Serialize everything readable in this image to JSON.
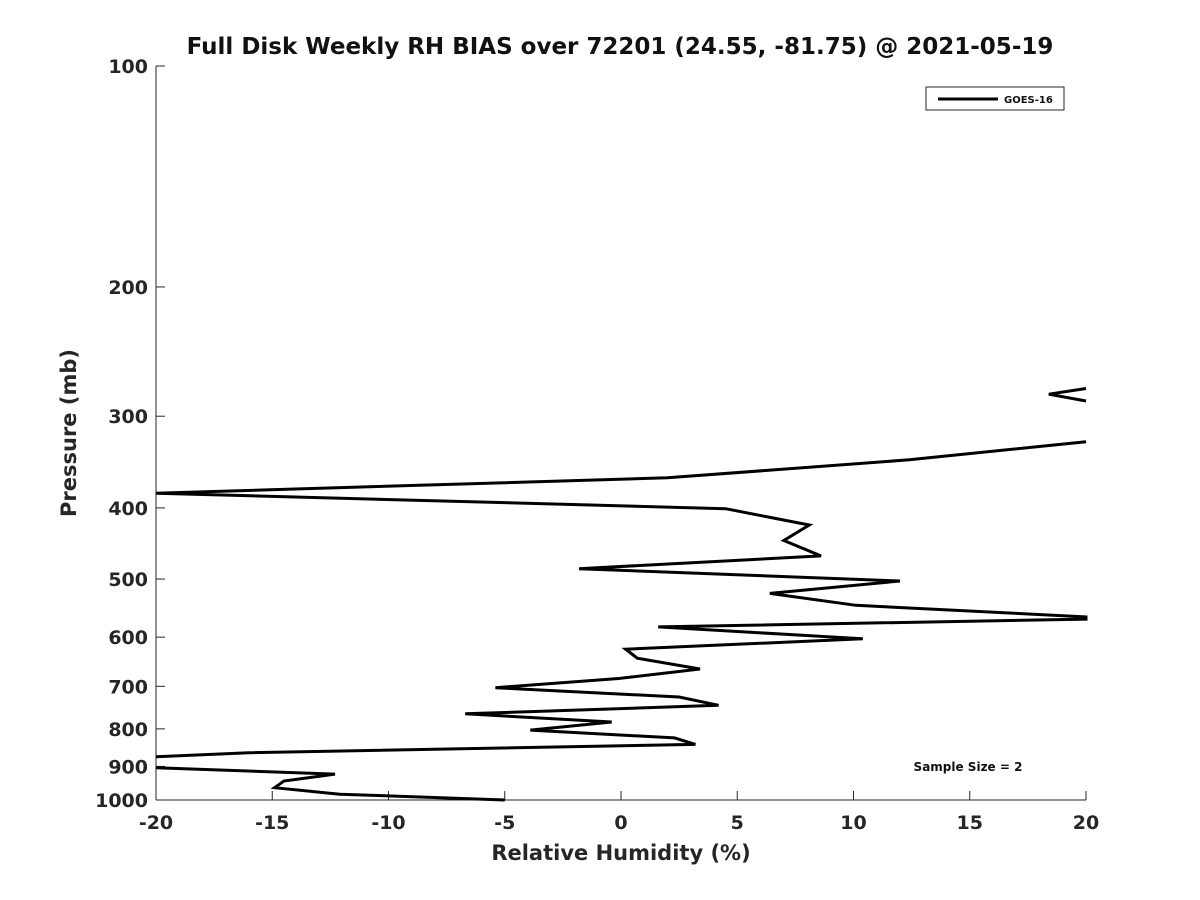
{
  "chart_data": {
    "type": "line",
    "title": "Full Disk Weekly RH BIAS over 72201 (24.55, -81.75) @ 2021-05-19",
    "xlabel": "Relative Humidity (%)",
    "ylabel": "Pressure (mb)",
    "xlim": [
      -20,
      20
    ],
    "ylim": [
      1000,
      100
    ],
    "y_scale": "log",
    "x_ticks": [
      -20,
      -15,
      -10,
      -5,
      0,
      5,
      10,
      15,
      20
    ],
    "y_ticks": [
      100,
      200,
      300,
      400,
      500,
      600,
      700,
      800,
      900,
      1000
    ],
    "grid": false,
    "legend": {
      "position": "top-right",
      "entries": [
        "GOES-16"
      ]
    },
    "annotation": "Sample Size = 2",
    "series": [
      {
        "name": "GOES-16",
        "color": "#000000",
        "segments": [
          [
            {
              "x": 20.0,
              "y": 275
            },
            {
              "x": 18.4,
              "y": 280
            },
            {
              "x": 20.0,
              "y": 286
            }
          ],
          [
            {
              "x": 20.0,
              "y": 325
            },
            {
              "x": 12.4,
              "y": 344
            },
            {
              "x": 2.0,
              "y": 364
            },
            {
              "x": -20.0,
              "y": 382
            },
            {
              "x": 4.5,
              "y": 401
            },
            {
              "x": 8.1,
              "y": 422
            },
            {
              "x": 7.0,
              "y": 443
            },
            {
              "x": 8.6,
              "y": 465
            },
            {
              "x": -1.8,
              "y": 484
            },
            {
              "x": 12.0,
              "y": 503
            },
            {
              "x": 6.4,
              "y": 523
            },
            {
              "x": 10.1,
              "y": 543
            },
            {
              "x": 20.0,
              "y": 563
            },
            {
              "x": 20.0,
              "y": 567
            },
            {
              "x": 1.6,
              "y": 581
            },
            {
              "x": 10.4,
              "y": 603
            },
            {
              "x": 0.2,
              "y": 623
            },
            {
              "x": 0.7,
              "y": 641
            },
            {
              "x": 3.4,
              "y": 663
            },
            {
              "x": -0.1,
              "y": 683
            },
            {
              "x": -5.4,
              "y": 703
            },
            {
              "x": 2.5,
              "y": 724
            },
            {
              "x": 4.2,
              "y": 743
            },
            {
              "x": -6.7,
              "y": 763
            },
            {
              "x": -0.4,
              "y": 783
            },
            {
              "x": -3.9,
              "y": 803
            },
            {
              "x": 2.3,
              "y": 823
            },
            {
              "x": 3.2,
              "y": 840
            },
            {
              "x": -16.0,
              "y": 862
            },
            {
              "x": -20.0,
              "y": 873
            }
          ],
          [
            {
              "x": -20.0,
              "y": 904
            },
            {
              "x": -12.3,
              "y": 922
            },
            {
              "x": -14.5,
              "y": 942
            },
            {
              "x": -14.9,
              "y": 962
            },
            {
              "x": -12.1,
              "y": 982
            },
            {
              "x": -5.0,
              "y": 1000
            }
          ]
        ]
      }
    ]
  }
}
